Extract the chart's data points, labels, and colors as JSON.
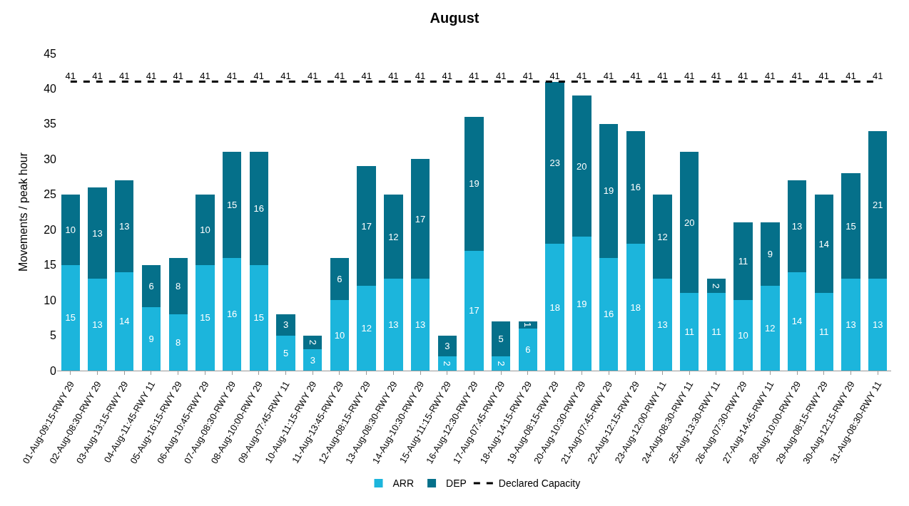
{
  "chart_data": {
    "type": "bar",
    "title": "August",
    "ylabel": "Movements / peak hour",
    "stacked": true,
    "data_labels": true,
    "legend": "bottom",
    "grid": false,
    "categories": [
      "01-Aug-09:15-RWY 29",
      "02-Aug-08:30-RWY 29",
      "03-Aug-13:15-RWY 29",
      "04-Aug-11:45-RWY 11",
      "05-Aug-16:15-RWY 29",
      "06-Aug-10:45-RWY 29",
      "07-Aug-08:30-RWY 29",
      "08-Aug-10:00-RWY 29",
      "09-Aug-07:45-RWY 11",
      "10-Aug-11:15-RWY 29",
      "11-Aug-13:45-RWY 29",
      "12-Aug-08:15-RWY 29",
      "13-Aug-08:30-RWY 29",
      "14-Aug-10:30-RWY 29",
      "15-Aug-11:15-RWY 29",
      "16-Aug-12:30-RWY 29",
      "17-Aug-07:45-RWY 29",
      "18-Aug-14:15-RWY 29",
      "19-Aug-08:15-RWY 29",
      "20-Aug-10:30-RWY 29",
      "21-Aug-07:45-RWY 29",
      "22-Aug-12:15-RWY 29",
      "23-Aug-12:00-RWY 11",
      "24-Aug-08:30-RWY 11",
      "25-Aug-13:30-RWY 11",
      "26-Aug-07:30-RWY 29",
      "27-Aug-14:45-RWY 11",
      "28-Aug-10:00-RWY 29",
      "29-Aug-08:15-RWY 29",
      "30-Aug-12:15-RWY 29",
      "31-Aug-08:30-RWY 11"
    ],
    "ylim": [
      0,
      45
    ],
    "yticks": [
      0,
      5,
      10,
      15,
      20,
      25,
      30,
      35,
      40,
      45
    ],
    "series": [
      {
        "name": "ARR",
        "color": "#1cb5dc",
        "values": [
          15,
          13,
          14,
          9,
          8,
          15,
          16,
          15,
          5,
          3,
          10,
          12,
          13,
          13,
          2,
          17,
          2,
          6,
          18,
          19,
          16,
          18,
          13,
          11,
          11,
          10,
          12,
          14,
          11,
          13,
          13
        ]
      },
      {
        "name": "DEP",
        "color": "#05708a",
        "values": [
          10,
          13,
          13,
          6,
          8,
          10,
          15,
          16,
          3,
          2,
          6,
          17,
          12,
          17,
          3,
          19,
          5,
          1,
          23,
          20,
          19,
          16,
          12,
          20,
          2,
          11,
          9,
          13,
          14,
          15,
          21
        ]
      },
      {
        "name": "Declared Capacity",
        "type": "line",
        "color": "#000000",
        "line_style": "dashed",
        "marker": "none",
        "values": [
          41,
          41,
          41,
          41,
          41,
          41,
          41,
          41,
          41,
          41,
          41,
          41,
          41,
          41,
          41,
          41,
          41,
          41,
          41,
          41,
          41,
          41,
          41,
          41,
          41,
          41,
          41,
          41,
          41,
          41,
          41
        ]
      }
    ]
  }
}
